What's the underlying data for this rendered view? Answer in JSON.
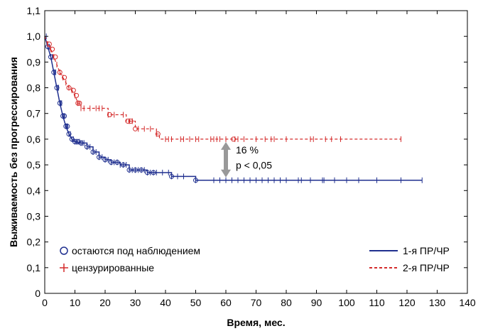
{
  "chart_data": {
    "type": "line",
    "xlabel": "Время, мес.",
    "ylabel": "Выживаемость без прогрессирования",
    "xlim": [
      0,
      140
    ],
    "ylim": [
      0,
      1.1
    ],
    "xticks": [
      0,
      10,
      20,
      30,
      40,
      50,
      60,
      70,
      80,
      90,
      100,
      110,
      120,
      130,
      140
    ],
    "xtick_labels": [
      "0",
      "10",
      "20",
      "30",
      "40",
      "50",
      "60",
      "70",
      "80",
      "90",
      "100",
      "110",
      "120",
      "130",
      "140"
    ],
    "yticks": [
      0,
      0.1,
      0.2,
      0.3,
      0.4,
      0.5,
      0.6,
      0.7,
      0.8,
      0.9,
      1.0,
      1.1
    ],
    "ytick_labels": [
      "0",
      "0,1",
      "0,2",
      "0,3",
      "0,4",
      "0,5",
      "0,6",
      "0,7",
      "0,8",
      "0,9",
      "1,0",
      "1,1"
    ],
    "grid": false,
    "series": [
      {
        "name": "1-я ПР/ЧР",
        "color": "#1f2f8f",
        "style": "solid",
        "x": [
          0,
          1,
          2,
          3,
          4,
          5,
          6,
          7,
          8,
          9,
          10,
          12,
          14,
          16,
          18,
          20,
          22,
          25,
          28,
          30,
          34,
          38,
          42,
          50,
          125
        ],
        "y": [
          1.0,
          0.96,
          0.92,
          0.86,
          0.8,
          0.74,
          0.69,
          0.65,
          0.62,
          0.6,
          0.59,
          0.585,
          0.57,
          0.55,
          0.53,
          0.52,
          0.51,
          0.5,
          0.48,
          0.48,
          0.47,
          0.47,
          0.455,
          0.44,
          0.44
        ],
        "censored_x": [
          0.5,
          1,
          1.5,
          2,
          2.5,
          3,
          3.3,
          3.6,
          4,
          4.3,
          4.6,
          5,
          5.3,
          5.6,
          6,
          6.3,
          6.6,
          7,
          7.3,
          7.6,
          8,
          8.5,
          9,
          9.5,
          10,
          10.5,
          11,
          11.5,
          12,
          12.5,
          13,
          14,
          15,
          16,
          17,
          18,
          19,
          20,
          21,
          22,
          23,
          24,
          25,
          26,
          27,
          28,
          29,
          30,
          31,
          32,
          33,
          34,
          35,
          36,
          37,
          39,
          41,
          42,
          44,
          46,
          50,
          56,
          58,
          60,
          62,
          64,
          66,
          68,
          70,
          72,
          74,
          76,
          78,
          80,
          84,
          85,
          88,
          92,
          92.5,
          96,
          100,
          104,
          110,
          118,
          125
        ],
        "circles_x": [
          1,
          2,
          3,
          4,
          5,
          6,
          6.5,
          7,
          7.5,
          8,
          9,
          10,
          11,
          12,
          14,
          16,
          18,
          20,
          22,
          24,
          26,
          28,
          30,
          32,
          34,
          36,
          42,
          50
        ]
      },
      {
        "name": "2-я ПР/ЧР",
        "color": "#d42a2a",
        "style": "dashed",
        "x": [
          0,
          1,
          2,
          3,
          4,
          5,
          6,
          7,
          8,
          9,
          10,
          11,
          12,
          14,
          17,
          21,
          27,
          30,
          34,
          37,
          38,
          118
        ],
        "y": [
          1.0,
          0.97,
          0.95,
          0.92,
          0.89,
          0.86,
          0.84,
          0.82,
          0.8,
          0.79,
          0.77,
          0.74,
          0.72,
          0.72,
          0.72,
          0.695,
          0.67,
          0.64,
          0.64,
          0.62,
          0.6,
          0.6
        ],
        "censored_x": [
          1,
          2,
          3,
          4,
          5,
          6,
          7,
          8,
          9,
          10,
          11,
          12,
          13,
          15,
          17,
          18,
          19,
          21,
          23,
          26,
          28,
          29,
          31,
          33,
          35,
          37,
          40,
          41,
          42,
          45,
          46,
          48,
          50,
          51,
          55,
          56,
          57,
          58,
          60,
          63,
          64,
          66,
          70,
          73,
          75,
          76,
          80,
          88,
          89,
          93,
          95,
          98,
          118
        ],
        "circles_x": [
          1.5,
          2.5,
          3.5,
          5,
          6.5,
          8,
          9.5,
          10.5,
          11,
          11.5,
          21.5,
          27.5,
          28.5,
          30,
          37.5,
          62.5
        ]
      }
    ],
    "legend_markers": [
      {
        "symbol": "circle",
        "label": "остаются под наблюдением"
      },
      {
        "symbol": "plus",
        "label": "цензурированные"
      }
    ],
    "legend_lines_position": "bottom-right",
    "legend_markers_position": "bottom-left",
    "annotation": {
      "x": 60,
      "y_top": 0.6,
      "y_bottom": 0.44,
      "text_line1": "16 %",
      "text_line2": "p < 0,05"
    }
  }
}
